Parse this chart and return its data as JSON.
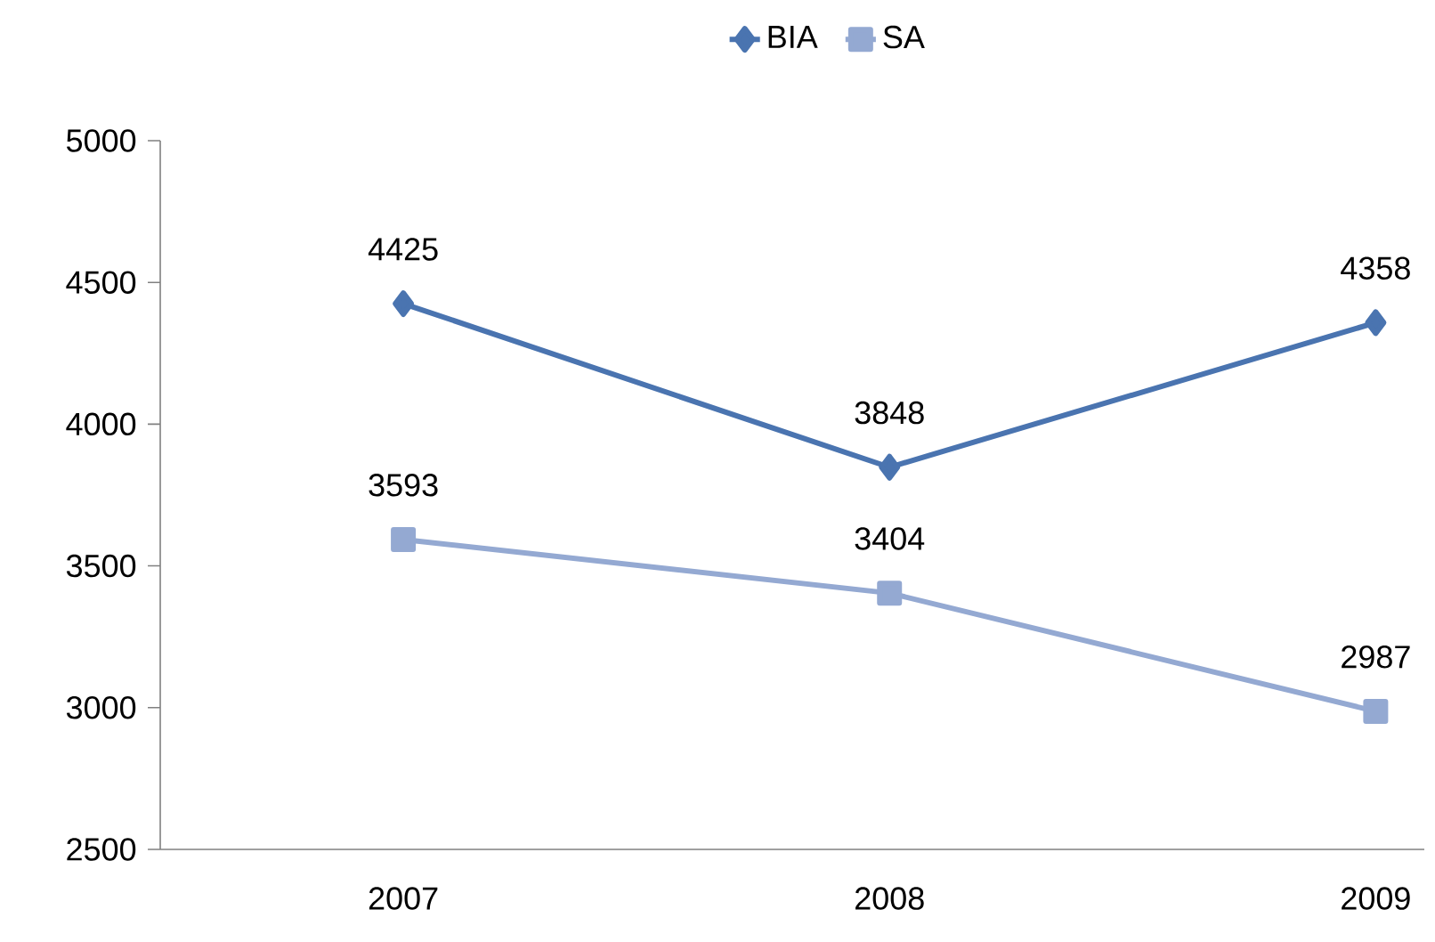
{
  "chart_data": {
    "type": "line",
    "categories": [
      "2007",
      "2008",
      "2009"
    ],
    "series": [
      {
        "name": "BIA",
        "color": "#4a74b0",
        "marker": "diamond",
        "values": [
          4425,
          3848,
          4358
        ]
      },
      {
        "name": "SA",
        "color": "#94a9d2",
        "marker": "square",
        "values": [
          3593,
          3404,
          2987
        ]
      }
    ],
    "ylim": [
      2500,
      5000
    ],
    "yticks": [
      2500,
      3000,
      3500,
      4000,
      4500,
      5000
    ],
    "data_labels": true,
    "legend": "top",
    "grid": false
  }
}
